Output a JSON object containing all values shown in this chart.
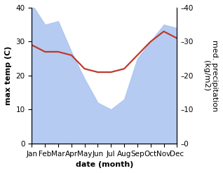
{
  "months": [
    "Jan",
    "Feb",
    "Mar",
    "Apr",
    "May",
    "Jun",
    "Jul",
    "Aug",
    "Sep",
    "Oct",
    "Nov",
    "Dec"
  ],
  "precipitation": [
    41,
    35,
    36,
    27,
    19,
    12,
    10,
    13,
    25,
    30,
    35,
    34
  ],
  "temperature": [
    29,
    27,
    27,
    26,
    22,
    21,
    21,
    22,
    26,
    30,
    33,
    31
  ],
  "precip_color": "#aec6f0",
  "temp_color": "#c0392b",
  "left_ylabel": "max temp (C)",
  "right_ylabel": "med. precipitation\n(kg/m2)",
  "xlabel": "date (month)",
  "ylim": [
    0,
    40
  ],
  "yticks": [
    0,
    10,
    20,
    30,
    40
  ],
  "bg_color": "#ffffff",
  "label_fontsize": 8,
  "tick_fontsize": 7.5,
  "linewidth": 1.6
}
